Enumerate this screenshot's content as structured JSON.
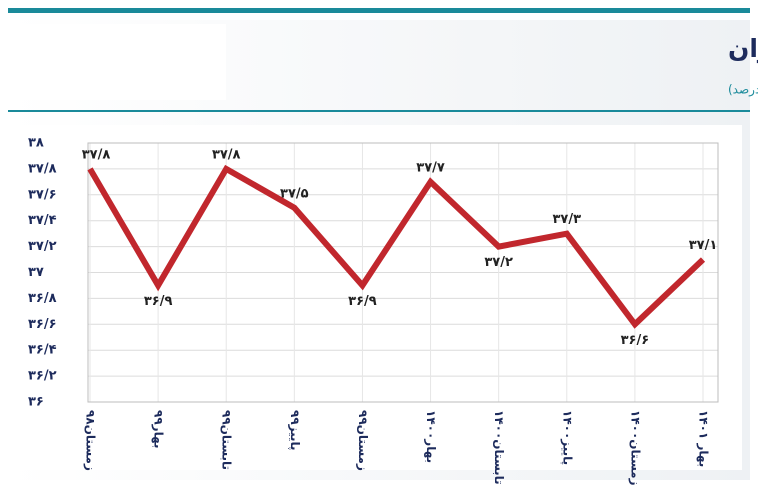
{
  "chart_data": {
    "type": "line",
    "title": "نسبت اشتغال کل در اقتصاد ایران",
    "subtitle": "(واحد: درصد)",
    "categories": [
      "زمستان۹۸",
      "بهار۹۹",
      "تابستان۹۹",
      "پاییز۹۹",
      "زمستان۹۹",
      "بهار۱۴۰۰",
      "تابستان۱۴۰۰",
      "پاییز۱۴۰۰",
      "زمستان۱۴۰۰",
      "بهار ۱۴۰۱"
    ],
    "values": [
      37.8,
      36.9,
      37.8,
      37.5,
      36.9,
      37.7,
      37.2,
      37.3,
      36.6,
      37.1
    ],
    "value_labels": [
      "۳۷/۸",
      "۳۶/۹",
      "۳۷/۸",
      "۳۷/۵",
      "۳۶/۹",
      "۳۷/۷",
      "۳۷/۲",
      "۳۷/۳",
      "۳۶/۶",
      "۳۷/۱"
    ],
    "color": "#c1272d",
    "ylim": [
      36,
      38
    ],
    "yticks": [
      {
        "value": 36,
        "label": "۳۶"
      },
      {
        "value": 36.2,
        "label": "۳۶/۲"
      },
      {
        "value": 36.4,
        "label": "۳۶/۴"
      },
      {
        "value": 36.6,
        "label": "۳۶/۶"
      },
      {
        "value": 36.8,
        "label": "۳۶/۸"
      },
      {
        "value": 37,
        "label": "۳۷"
      },
      {
        "value": 37.2,
        "label": "۳۷/۲"
      },
      {
        "value": 37.4,
        "label": "۳۷/۴"
      },
      {
        "value": 37.6,
        "label": "۳۷/۶"
      },
      {
        "value": 37.8,
        "label": "۳۷/۸"
      },
      {
        "value": 38,
        "label": "۳۸"
      }
    ],
    "grid": true
  }
}
